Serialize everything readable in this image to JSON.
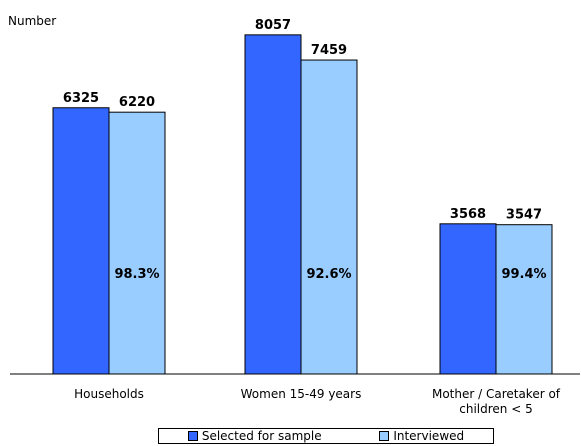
{
  "chart_data": {
    "type": "bar",
    "ylabel": "Number",
    "categories": [
      "Households",
      "Women 15-49 years",
      "Mother / Caretaker of children < 5"
    ],
    "category_lines": [
      [
        "Households"
      ],
      [
        "Women 15-49 years"
      ],
      [
        "Mother / Caretaker of",
        "children < 5"
      ]
    ],
    "series": [
      {
        "name": "Selected for sample",
        "values": [
          6325,
          8057,
          3568
        ],
        "color": "#3366FF"
      },
      {
        "name": "Interviewed",
        "values": [
          6220,
          7459,
          3547
        ],
        "color": "#99CCFF"
      }
    ],
    "annotations": [
      "98.3%",
      "92.6%",
      "99.4%"
    ],
    "ylim": [
      0,
      8600
    ],
    "grid": false,
    "legend_position": "bottom"
  }
}
